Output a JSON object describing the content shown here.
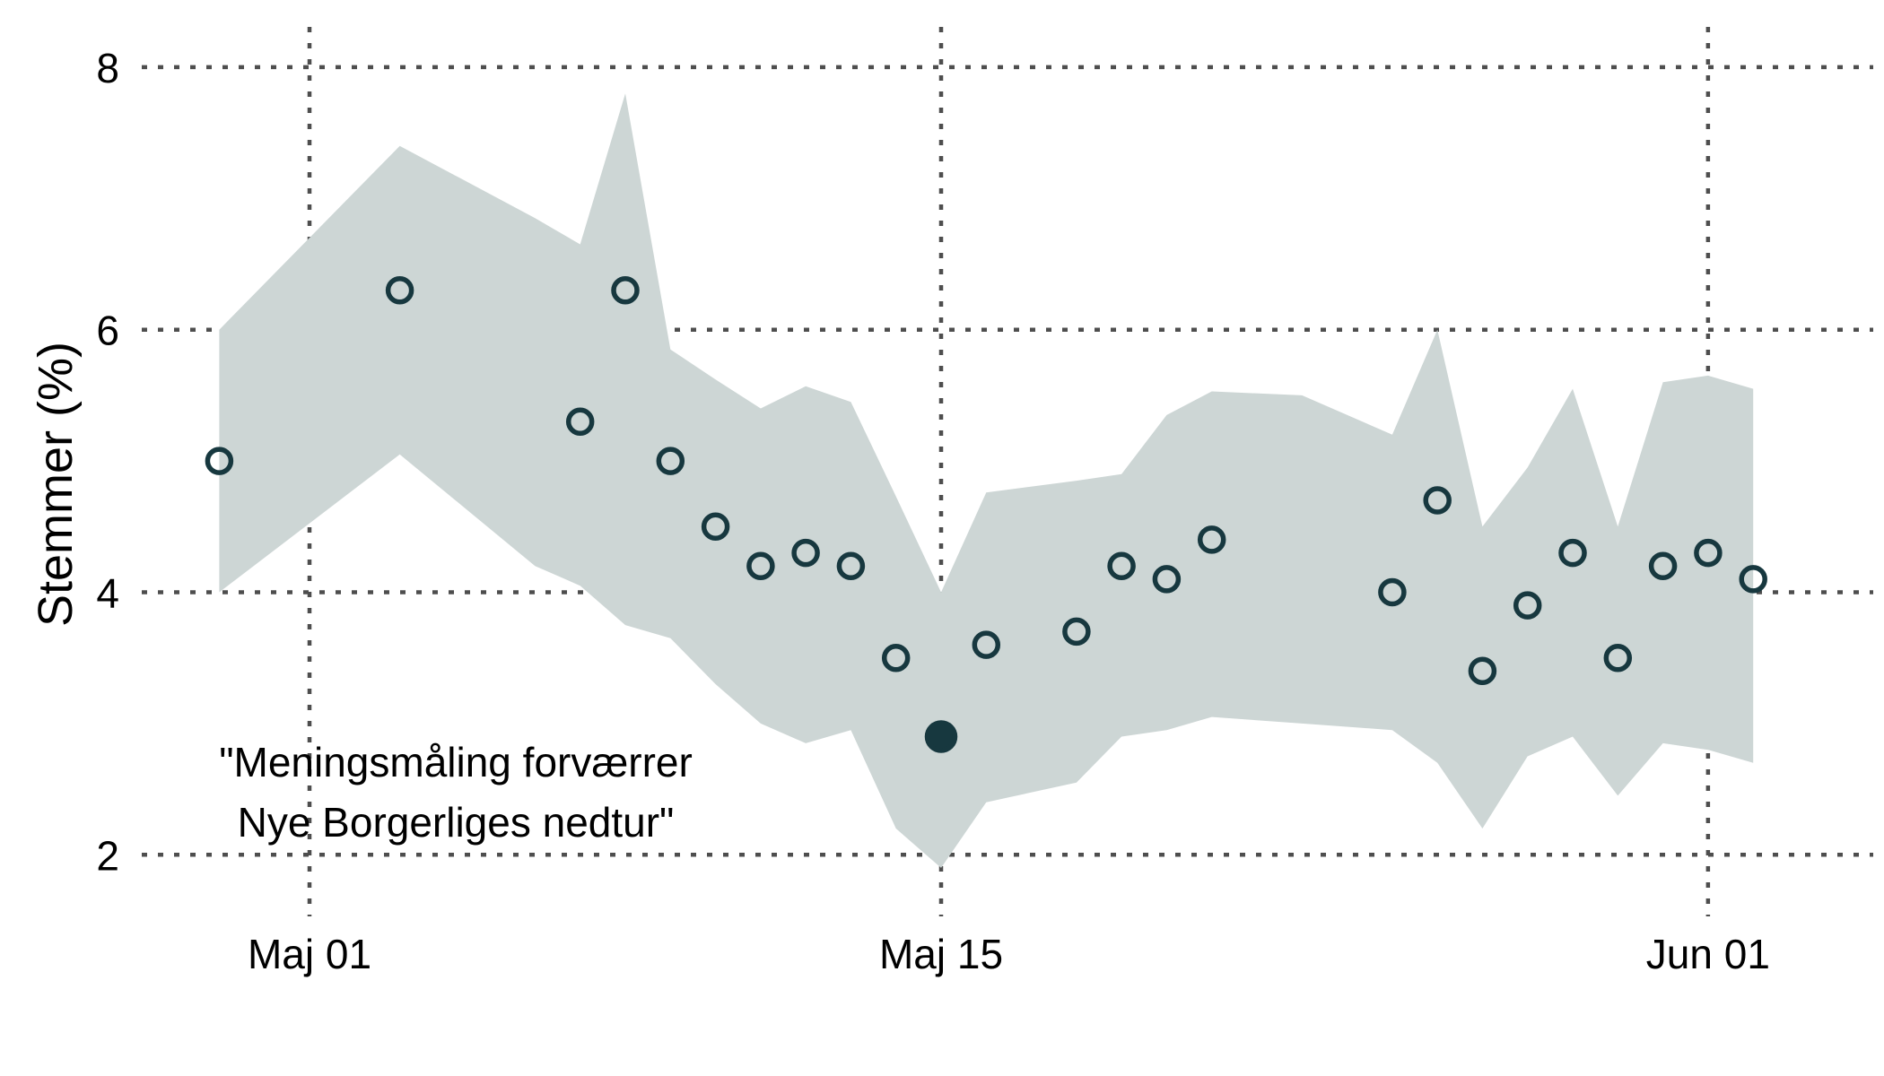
{
  "chart_data": {
    "type": "scatter",
    "description": "Polling trend scatter with model confidence band",
    "ylabel": "Stemmer (%)",
    "xlabel": "",
    "ylim": [
      2,
      8
    ],
    "xlim_days_from_may01": [
      -4,
      34
    ],
    "grid": "dotted",
    "legend": "none",
    "annotation": {
      "lines": [
        "\"Meningsmåling forværrer",
        "Nye Borgerliges nedtur\""
      ]
    },
    "yticks": [
      {
        "label": "8",
        "value": 8
      },
      {
        "label": "6",
        "value": 6
      },
      {
        "label": "4",
        "value": 4
      },
      {
        "label": "2",
        "value": 2
      }
    ],
    "xticks": [
      {
        "label": "Maj 01",
        "day": 0
      },
      {
        "label": "Maj 15",
        "day": 14
      },
      {
        "label": "Jun 01",
        "day": 31
      }
    ],
    "points": [
      {
        "date": "Apr 29",
        "day": -2,
        "value": 5.0,
        "filled": false
      },
      {
        "date": "Maj 03",
        "day": 2,
        "value": 6.3,
        "filled": false
      },
      {
        "date": "Maj 07",
        "day": 6,
        "value": 5.3,
        "filled": false
      },
      {
        "date": "Maj 08",
        "day": 7,
        "value": 6.3,
        "filled": false
      },
      {
        "date": "Maj 09",
        "day": 8,
        "value": 5.0,
        "filled": false
      },
      {
        "date": "Maj 10",
        "day": 9,
        "value": 4.5,
        "filled": false
      },
      {
        "date": "Maj 11",
        "day": 10,
        "value": 4.2,
        "filled": false
      },
      {
        "date": "Maj 12",
        "day": 11,
        "value": 4.3,
        "filled": false
      },
      {
        "date": "Maj 13",
        "day": 12,
        "value": 4.2,
        "filled": false
      },
      {
        "date": "Maj 14",
        "day": 13,
        "value": 3.5,
        "filled": false
      },
      {
        "date": "Maj 15",
        "day": 14,
        "value": 2.9,
        "filled": true
      },
      {
        "date": "Maj 16",
        "day": 15,
        "value": 3.6,
        "filled": false
      },
      {
        "date": "Maj 18",
        "day": 17,
        "value": 3.7,
        "filled": false
      },
      {
        "date": "Maj 19",
        "day": 18,
        "value": 4.2,
        "filled": false
      },
      {
        "date": "Maj 20",
        "day": 19,
        "value": 4.1,
        "filled": false
      },
      {
        "date": "Maj 21",
        "day": 20,
        "value": 4.4,
        "filled": false
      },
      {
        "date": "Maj 25",
        "day": 24,
        "value": 4.0,
        "filled": false
      },
      {
        "date": "Maj 26",
        "day": 25,
        "value": 4.7,
        "filled": false
      },
      {
        "date": "Maj 27",
        "day": 26,
        "value": 3.4,
        "filled": false
      },
      {
        "date": "Maj 28",
        "day": 27,
        "value": 3.9,
        "filled": false
      },
      {
        "date": "Maj 29",
        "day": 28,
        "value": 4.3,
        "filled": false
      },
      {
        "date": "Maj 30",
        "day": 29,
        "value": 3.5,
        "filled": false
      },
      {
        "date": "Maj 31",
        "day": 30,
        "value": 4.2,
        "filled": false
      },
      {
        "date": "Jun 01",
        "day": 31,
        "value": 4.3,
        "filled": false
      },
      {
        "date": "Jun 02",
        "day": 32,
        "value": 4.1,
        "filled": false
      }
    ],
    "band": [
      {
        "date": "Apr 29",
        "day": -2,
        "lower": 4.0,
        "upper": 6.0
      },
      {
        "date": "Maj 03",
        "day": 2,
        "lower": 5.05,
        "upper": 7.4
      },
      {
        "date": "Maj 06",
        "day": 5,
        "lower": 4.2,
        "upper": 6.85
      },
      {
        "date": "Maj 07",
        "day": 6,
        "lower": 4.05,
        "upper": 6.65
      },
      {
        "date": "Maj 08",
        "day": 7,
        "lower": 3.75,
        "upper": 7.8
      },
      {
        "date": "Maj 09",
        "day": 8,
        "lower": 3.65,
        "upper": 5.85
      },
      {
        "date": "Maj 10",
        "day": 9,
        "lower": 3.3,
        "upper": 5.62
      },
      {
        "date": "Maj 11",
        "day": 10,
        "lower": 3.0,
        "upper": 5.4
      },
      {
        "date": "Maj 12",
        "day": 11,
        "lower": 2.85,
        "upper": 5.57
      },
      {
        "date": "Maj 13",
        "day": 12,
        "lower": 2.95,
        "upper": 5.45
      },
      {
        "date": "Maj 14",
        "day": 13,
        "lower": 2.2,
        "upper": 4.73
      },
      {
        "date": "Maj 15",
        "day": 14,
        "lower": 1.9,
        "upper": 4.0
      },
      {
        "date": "Maj 16",
        "day": 15,
        "lower": 2.4,
        "upper": 4.76
      },
      {
        "date": "Maj 18",
        "day": 17,
        "lower": 2.55,
        "upper": 4.85
      },
      {
        "date": "Maj 19",
        "day": 18,
        "lower": 2.9,
        "upper": 4.9
      },
      {
        "date": "Maj 20",
        "day": 19,
        "lower": 2.95,
        "upper": 5.35
      },
      {
        "date": "Maj 21",
        "day": 20,
        "lower": 3.05,
        "upper": 5.53
      },
      {
        "date": "Maj 23",
        "day": 22,
        "lower": 3.0,
        "upper": 5.5
      },
      {
        "date": "Maj 25",
        "day": 24,
        "lower": 2.95,
        "upper": 5.2
      },
      {
        "date": "Maj 26",
        "day": 25,
        "lower": 2.7,
        "upper": 6.0
      },
      {
        "date": "Maj 27",
        "day": 26,
        "lower": 2.2,
        "upper": 4.5
      },
      {
        "date": "Maj 28",
        "day": 27,
        "lower": 2.75,
        "upper": 4.95
      },
      {
        "date": "Maj 29",
        "day": 28,
        "lower": 2.9,
        "upper": 5.55
      },
      {
        "date": "Maj 30",
        "day": 29,
        "lower": 2.45,
        "upper": 4.5
      },
      {
        "date": "Maj 31",
        "day": 30,
        "lower": 2.85,
        "upper": 5.6
      },
      {
        "date": "Jun 01",
        "day": 31,
        "lower": 2.8,
        "upper": 5.65
      },
      {
        "date": "Jun 02",
        "day": 32,
        "lower": 2.7,
        "upper": 5.55
      }
    ],
    "colors": {
      "band_fill": "#cdd6d5",
      "point_stroke": "#17383f",
      "filled_point": "#17383f",
      "gridline": "#4e4e4e",
      "text": "#000000",
      "background": "#ffffff"
    }
  }
}
